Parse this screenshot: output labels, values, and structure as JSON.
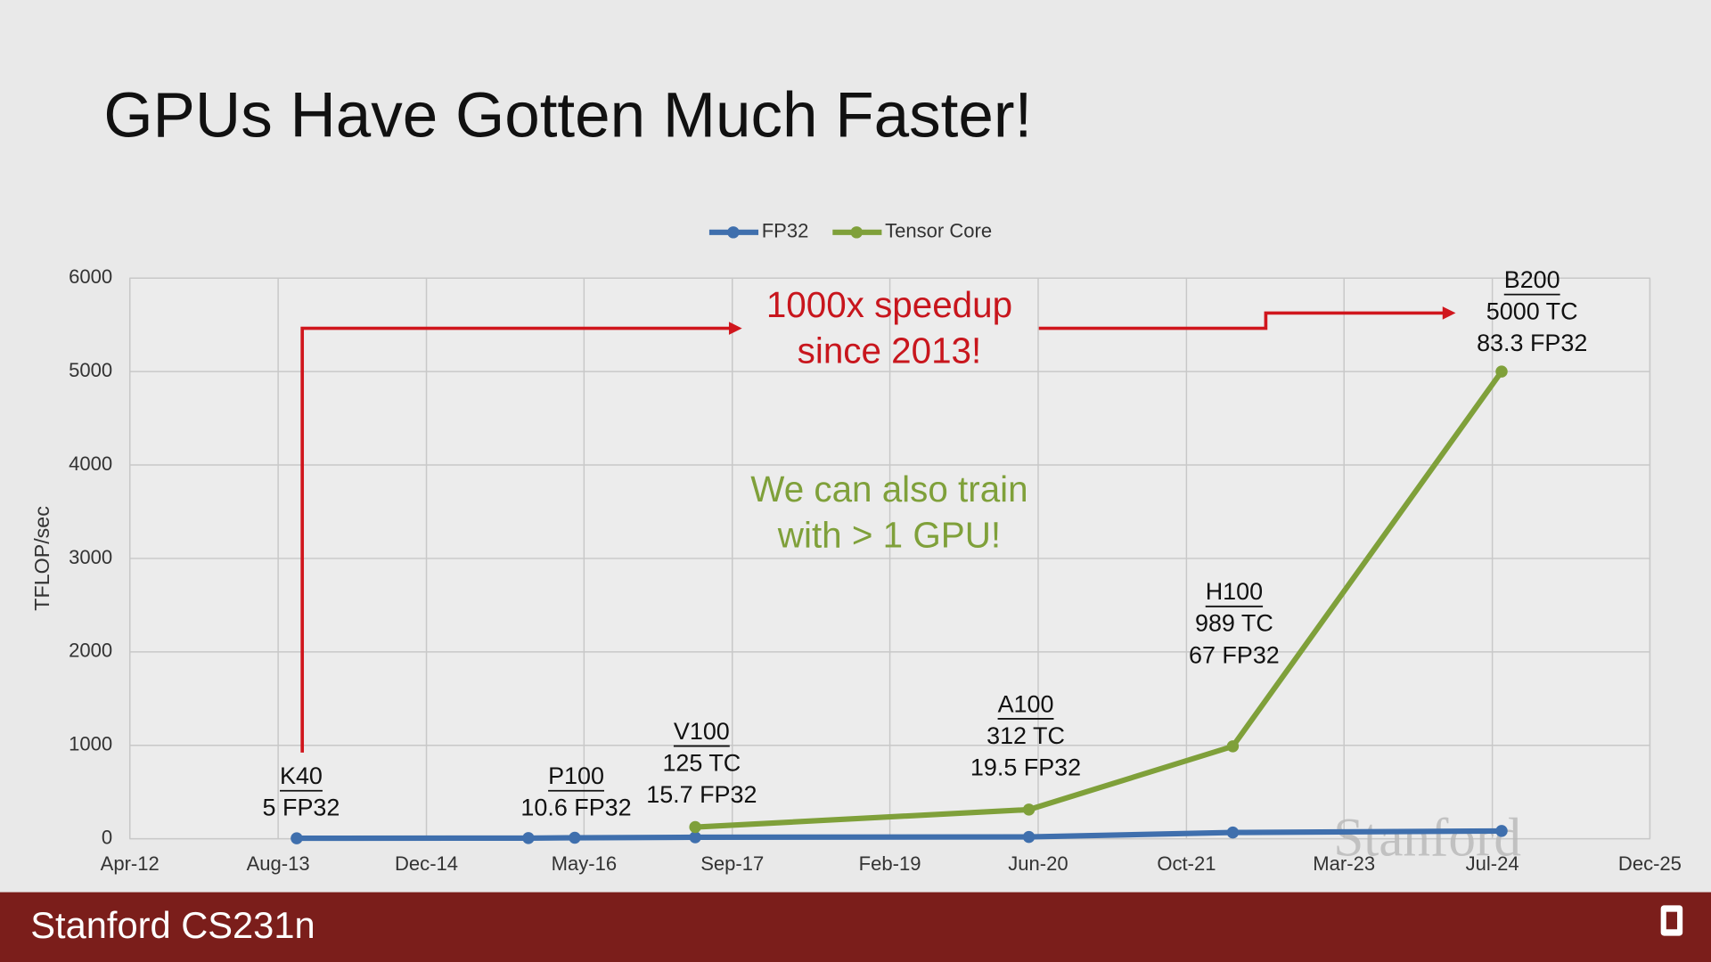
{
  "title": "GPUs Have Gotten Much Faster!",
  "footer": "Stanford CS231n",
  "chart_data": {
    "type": "line",
    "x": [
      "2013-10",
      "2015-11",
      "2016-04",
      "2017-05",
      "2020-05",
      "2022-03",
      "2024-08"
    ],
    "series": [
      {
        "name": "FP32",
        "color": "#3f6fad",
        "values": [
          5,
          7,
          10.6,
          15.7,
          19.5,
          67,
          83.3
        ]
      },
      {
        "name": "Tensor Core",
        "color": "#7fa03a",
        "values": [
          null,
          null,
          null,
          125,
          312,
          989,
          5000
        ]
      }
    ],
    "y_label": "TFLOP/sec",
    "ylim": [
      0,
      6000
    ],
    "yticks": [
      0,
      1000,
      2000,
      3000,
      4000,
      5000,
      6000
    ],
    "xlim": [
      "2012-04",
      "2025-12"
    ],
    "xticks": [
      {
        "value": "2012-04",
        "label": "Apr-12"
      },
      {
        "value": "2013-08",
        "label": "Aug-13"
      },
      {
        "value": "2014-12",
        "label": "Dec-14"
      },
      {
        "value": "2016-05",
        "label": "May-16"
      },
      {
        "value": "2017-09",
        "label": "Sep-17"
      },
      {
        "value": "2019-02",
        "label": "Feb-19"
      },
      {
        "value": "2020-06",
        "label": "Jun-20"
      },
      {
        "value": "2021-10",
        "label": "Oct-21"
      },
      {
        "value": "2023-03",
        "label": "Mar-23"
      },
      {
        "value": "2024-07",
        "label": "Jul-24"
      },
      {
        "value": "2025-12",
        "label": "Dec-25"
      }
    ],
    "grid": true,
    "legend": "top",
    "gpu_labels": [
      {
        "name": "K40",
        "lines": [
          "5 FP32"
        ]
      },
      {
        "name": "P100",
        "lines": [
          "10.6 FP32"
        ]
      },
      {
        "name": "V100",
        "lines": [
          "125 TC",
          "15.7 FP32"
        ]
      },
      {
        "name": "A100",
        "lines": [
          "312 TC",
          "19.5 FP32"
        ]
      },
      {
        "name": "H100",
        "lines": [
          "989 TC",
          "67 FP32"
        ]
      },
      {
        "name": "B200",
        "lines": [
          "5000 TC",
          "83.3 FP32"
        ]
      }
    ],
    "annotations": [
      {
        "lines": [
          "1000x speedup",
          "since 2013!"
        ],
        "color": "#c8161d"
      },
      {
        "lines": [
          "We can also train",
          "with > 1 GPU!"
        ],
        "color": "#7fa03a"
      }
    ],
    "watermark": "Stanford"
  }
}
